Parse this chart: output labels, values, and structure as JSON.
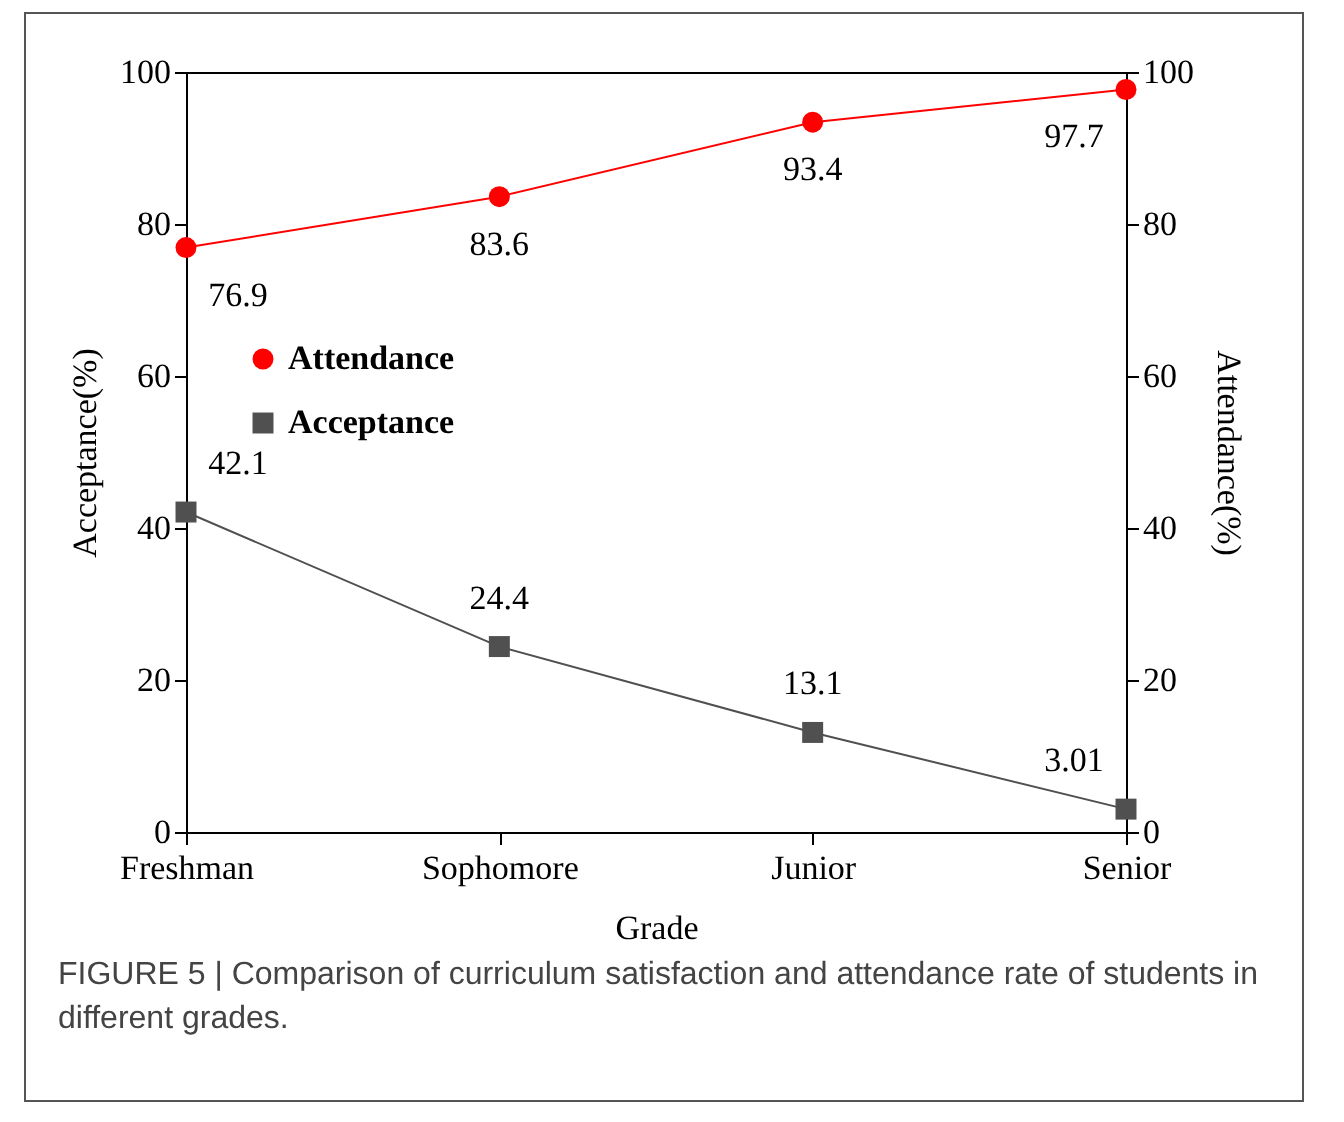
{
  "chart_data": {
    "type": "line",
    "xlabel": "Grade",
    "ylabel": "Acceptance(%)",
    "y2label": "Attendance(%)",
    "categories": [
      "Freshman",
      "Sophomore",
      "Junior",
      "Senior"
    ],
    "series": [
      {
        "name": "Attendance",
        "color": "#ff0000",
        "values": [
          76.9,
          83.6,
          93.4,
          97.7
        ],
        "axis": "y2",
        "marker": "circle"
      },
      {
        "name": "Acceptance",
        "color": "#505050",
        "values": [
          42.1,
          24.4,
          13.1,
          3.01
        ],
        "marker": "square"
      }
    ],
    "ylim": [
      0,
      100
    ],
    "yticks": [
      0,
      20,
      40,
      60,
      80,
      100
    ],
    "y2lim": [
      0,
      100
    ],
    "y2ticks": [
      0,
      20,
      40,
      60,
      80,
      100
    ],
    "data_labels": true,
    "grid": false,
    "legend": "left",
    "annotations": [
      "FIGURE 5 | Comparison of curriculum satisfaction and attendance rate of students in different grades."
    ]
  }
}
